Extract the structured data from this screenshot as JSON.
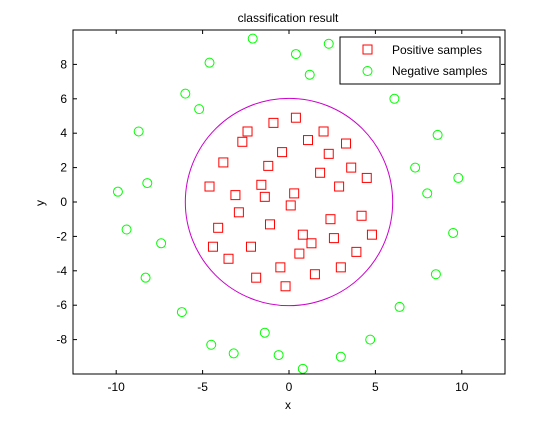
{
  "chart_data": {
    "type": "scatter",
    "title": "classification result",
    "xlabel": "x",
    "ylabel": "y",
    "xlim": [
      -12.5,
      12.5
    ],
    "ylim": [
      -10,
      10
    ],
    "x_ticks": [
      -10,
      -5,
      0,
      5,
      10
    ],
    "y_ticks": [
      -8,
      -6,
      -4,
      -2,
      0,
      2,
      4,
      6,
      8
    ],
    "grid": false,
    "legend_position": "top-right",
    "series": [
      {
        "name": "Positive samples",
        "marker": "square",
        "color": "#ff0000",
        "distribution": "disc centered at (0,0), radius about 5",
        "points": [
          [
            0.3,
            0.5
          ],
          [
            -1.2,
            2.1
          ],
          [
            2.4,
            -1.0
          ],
          [
            -3.1,
            0.4
          ],
          [
            1.1,
            3.6
          ],
          [
            -0.5,
            -3.8
          ],
          [
            3.6,
            2.0
          ],
          [
            -2.2,
            -2.6
          ],
          [
            0.8,
            -1.9
          ],
          [
            -1.6,
            1.0
          ],
          [
            4.2,
            -0.8
          ],
          [
            -4.1,
            -1.5
          ],
          [
            2.0,
            4.1
          ],
          [
            -2.7,
            3.5
          ],
          [
            1.5,
            -4.2
          ],
          [
            -0.9,
            4.6
          ],
          [
            3.9,
            -2.9
          ],
          [
            -3.8,
            2.3
          ],
          [
            0.1,
            -0.2
          ],
          [
            2.9,
            0.9
          ],
          [
            -1.9,
            -4.4
          ],
          [
            4.5,
            1.4
          ],
          [
            -4.6,
            0.9
          ],
          [
            1.8,
            1.7
          ],
          [
            -0.4,
            2.9
          ],
          [
            0.6,
            -3.0
          ],
          [
            -2.9,
            -0.6
          ],
          [
            3.0,
            -3.8
          ],
          [
            -1.1,
            -1.3
          ],
          [
            2.3,
            2.8
          ],
          [
            -3.5,
            -3.3
          ],
          [
            4.8,
            -1.9
          ],
          [
            0.4,
            4.9
          ],
          [
            -2.4,
            4.1
          ],
          [
            1.3,
            -2.4
          ],
          [
            -4.4,
            -2.6
          ],
          [
            3.3,
            3.4
          ],
          [
            -0.2,
            -4.9
          ],
          [
            2.6,
            -2.1
          ],
          [
            -1.4,
            0.3
          ]
        ]
      },
      {
        "name": "Negative samples",
        "marker": "circle",
        "color": "#00ff00",
        "distribution": "annulus centered at (0,0), radius about 7 to 10",
        "points": [
          [
            8.0,
            0.5
          ],
          [
            -8.2,
            1.1
          ],
          [
            0.4,
            8.6
          ],
          [
            -0.6,
            -8.9
          ],
          [
            6.1,
            6.0
          ],
          [
            -6.0,
            6.3
          ],
          [
            6.4,
            -6.1
          ],
          [
            -6.2,
            -6.4
          ],
          [
            9.5,
            -1.8
          ],
          [
            -9.4,
            -1.6
          ],
          [
            2.3,
            9.2
          ],
          [
            -2.1,
            9.5
          ],
          [
            3.0,
            -9.0
          ],
          [
            -3.2,
            -8.8
          ],
          [
            8.6,
            3.9
          ],
          [
            -8.7,
            4.1
          ],
          [
            8.5,
            -4.2
          ],
          [
            -8.3,
            -4.4
          ],
          [
            4.4,
            8.3
          ],
          [
            -4.6,
            8.1
          ],
          [
            4.7,
            -8.0
          ],
          [
            -4.5,
            -8.3
          ],
          [
            7.3,
            2.0
          ],
          [
            -7.4,
            -2.4
          ],
          [
            1.2,
            7.4
          ],
          [
            -1.4,
            -7.6
          ],
          [
            9.8,
            1.4
          ],
          [
            -9.9,
            0.6
          ],
          [
            0.8,
            -9.7
          ],
          [
            -5.2,
            5.4
          ]
        ]
      }
    ]
  }
}
